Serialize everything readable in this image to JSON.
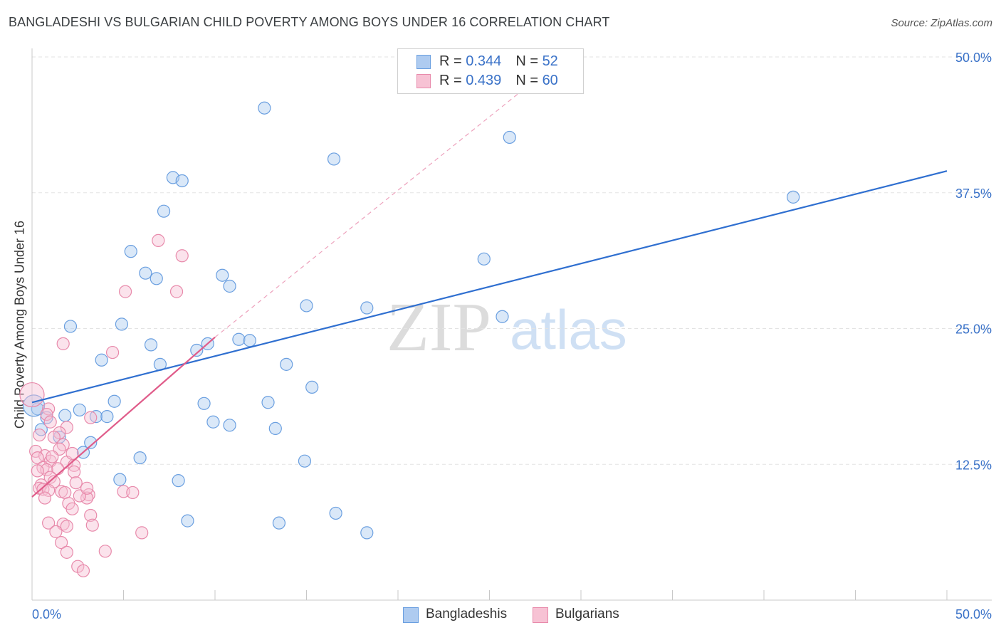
{
  "chart_data": {
    "type": "scatter",
    "title": "BANGLADESHI VS BULGARIAN CHILD POVERTY AMONG BOYS UNDER 16 CORRELATION CHART",
    "source": "Source: ZipAtlas.com",
    "ylabel": "Child Poverty Among Boys Under 16",
    "xlabel": "",
    "xlim": [
      0,
      50
    ],
    "ylim": [
      0,
      50
    ],
    "x_tick_labels": [
      "0.0%",
      "50.0%"
    ],
    "y_tick_labels": [
      "12.5%",
      "25.0%",
      "37.5%",
      "50.0%"
    ],
    "y_tick_values": [
      12.5,
      25.0,
      37.5,
      50.0
    ],
    "watermark": {
      "zip": "ZIP",
      "atlas": "atlas"
    },
    "legend": [
      {
        "r_label": "R = ",
        "r": "0.344",
        "n_label": "N = ",
        "n": "52"
      },
      {
        "r_label": "R = ",
        "r": "0.439",
        "n_label": "N = ",
        "n": "60"
      }
    ],
    "series": [
      {
        "name": "Bangladeshis",
        "color": "#6a9fe0",
        "fill": "#aecbf0",
        "line_color": "#2f6fd0",
        "trend": {
          "x": [
            0,
            50
          ],
          "y": [
            18.2,
            39.5
          ]
        },
        "points": [
          [
            12.7,
            45.3
          ],
          [
            26.1,
            42.6
          ],
          [
            16.5,
            40.6
          ],
          [
            7.7,
            38.9
          ],
          [
            8.2,
            38.6
          ],
          [
            41.6,
            37.1
          ],
          [
            7.2,
            35.8
          ],
          [
            5.4,
            32.1
          ],
          [
            24.7,
            31.4
          ],
          [
            6.2,
            30.1
          ],
          [
            10.4,
            29.9
          ],
          [
            6.8,
            29.6
          ],
          [
            10.8,
            28.9
          ],
          [
            15.0,
            27.1
          ],
          [
            18.3,
            26.9
          ],
          [
            25.7,
            26.1
          ],
          [
            2.1,
            25.2
          ],
          [
            4.9,
            25.4
          ],
          [
            11.3,
            24.0
          ],
          [
            11.9,
            23.9
          ],
          [
            6.5,
            23.5
          ],
          [
            9.6,
            23.6
          ],
          [
            9.0,
            23.0
          ],
          [
            3.8,
            22.1
          ],
          [
            7.0,
            21.7
          ],
          [
            13.9,
            21.7
          ],
          [
            15.3,
            19.6
          ],
          [
            4.5,
            18.3
          ],
          [
            12.9,
            18.2
          ],
          [
            9.4,
            18.1
          ],
          [
            0.3,
            17.6
          ],
          [
            2.6,
            17.5
          ],
          [
            1.8,
            17.0
          ],
          [
            3.5,
            16.9
          ],
          [
            4.1,
            16.9
          ],
          [
            0.8,
            16.8
          ],
          [
            9.9,
            16.4
          ],
          [
            10.8,
            16.1
          ],
          [
            13.3,
            15.8
          ],
          [
            0.5,
            15.7
          ],
          [
            1.5,
            15.0
          ],
          [
            3.2,
            14.5
          ],
          [
            2.8,
            13.6
          ],
          [
            5.9,
            13.1
          ],
          [
            14.9,
            12.8
          ],
          [
            4.8,
            11.1
          ],
          [
            8.0,
            11.0
          ],
          [
            16.6,
            8.0
          ],
          [
            8.5,
            7.3
          ],
          [
            13.5,
            7.1
          ],
          [
            18.3,
            6.2
          ],
          [
            0.1,
            17.9
          ]
        ]
      },
      {
        "name": "Bulgarians",
        "color": "#e88aab",
        "fill": "#f7c2d4",
        "line_color": "#e05c8a",
        "trend": {
          "x": [
            0,
            10
          ],
          "y": [
            9.5,
            24.2
          ]
        },
        "trend_ext": {
          "x": [
            10,
            27
          ],
          "y": [
            24.2,
            47.2
          ]
        },
        "points": [
          [
            6.9,
            33.1
          ],
          [
            8.2,
            31.7
          ],
          [
            5.1,
            28.4
          ],
          [
            7.9,
            28.4
          ],
          [
            1.7,
            23.6
          ],
          [
            4.4,
            22.8
          ],
          [
            0.0,
            18.9
          ],
          [
            0.9,
            17.6
          ],
          [
            0.8,
            17.1
          ],
          [
            3.2,
            16.8
          ],
          [
            1.9,
            15.9
          ],
          [
            1.5,
            15.4
          ],
          [
            1.2,
            15.0
          ],
          [
            1.7,
            14.3
          ],
          [
            1.5,
            13.9
          ],
          [
            0.2,
            13.7
          ],
          [
            0.7,
            13.3
          ],
          [
            0.3,
            13.1
          ],
          [
            1.0,
            12.8
          ],
          [
            1.9,
            12.7
          ],
          [
            2.3,
            12.4
          ],
          [
            0.6,
            12.2
          ],
          [
            1.4,
            12.1
          ],
          [
            0.8,
            12.0
          ],
          [
            0.3,
            11.9
          ],
          [
            2.3,
            11.8
          ],
          [
            1.0,
            11.3
          ],
          [
            1.2,
            10.9
          ],
          [
            2.4,
            10.8
          ],
          [
            0.5,
            10.6
          ],
          [
            0.4,
            10.3
          ],
          [
            0.6,
            10.2
          ],
          [
            0.9,
            10.1
          ],
          [
            1.6,
            10.0
          ],
          [
            1.8,
            9.9
          ],
          [
            5.0,
            10.0
          ],
          [
            5.5,
            9.9
          ],
          [
            3.1,
            9.7
          ],
          [
            3.0,
            9.4
          ],
          [
            0.7,
            9.4
          ],
          [
            2.0,
            8.9
          ],
          [
            2.2,
            8.4
          ],
          [
            3.2,
            7.8
          ],
          [
            0.9,
            7.1
          ],
          [
            1.7,
            7.0
          ],
          [
            1.9,
            6.8
          ],
          [
            3.3,
            6.9
          ],
          [
            1.3,
            6.3
          ],
          [
            6.0,
            6.2
          ],
          [
            1.6,
            5.3
          ],
          [
            1.9,
            4.4
          ],
          [
            4.0,
            4.5
          ],
          [
            2.5,
            3.1
          ],
          [
            2.8,
            2.7
          ],
          [
            1.0,
            16.4
          ],
          [
            2.6,
            9.6
          ],
          [
            1.1,
            13.2
          ],
          [
            2.2,
            13.5
          ],
          [
            0.4,
            15.2
          ],
          [
            3.0,
            10.3
          ]
        ]
      }
    ]
  }
}
